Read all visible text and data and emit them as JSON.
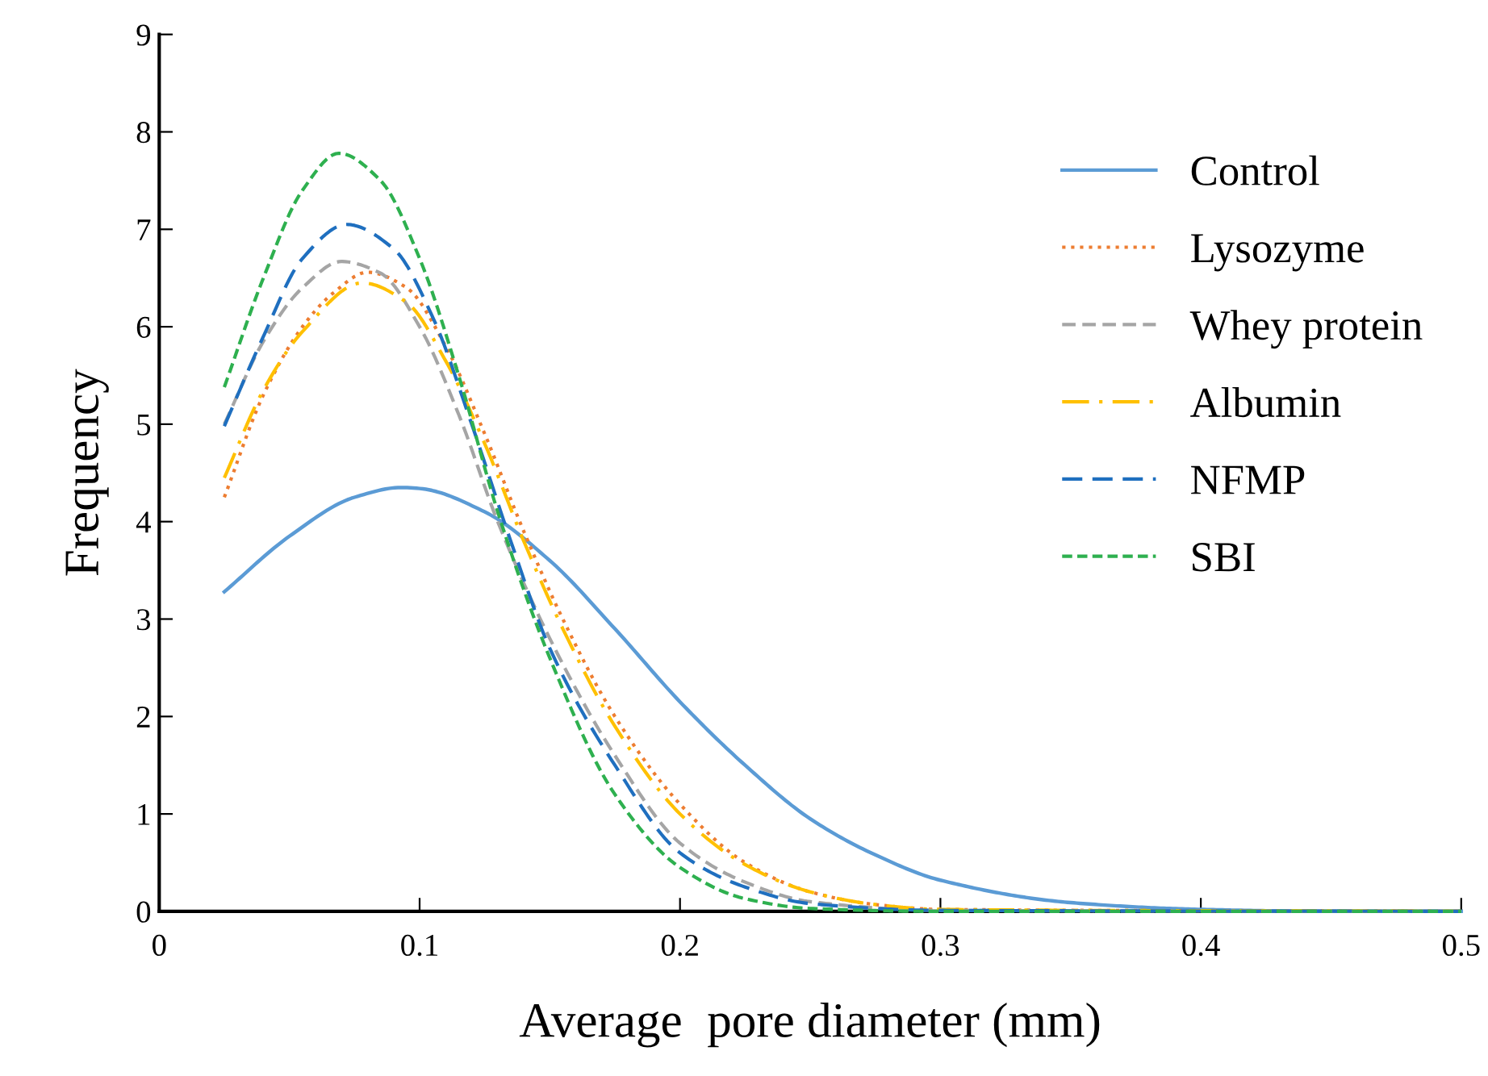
{
  "chart_data": {
    "type": "line",
    "xlabel": "Average  pore diameter (mm)",
    "ylabel": "Frequency",
    "xlim": [
      0,
      0.5
    ],
    "xticks": [
      0,
      0.1,
      0.2,
      0.3,
      0.4,
      0.5
    ],
    "ylim": [
      0,
      9
    ],
    "yticks": [
      0,
      1,
      2,
      3,
      4,
      5,
      6,
      7,
      8,
      9
    ],
    "grid": false,
    "legend": "right",
    "marker": "none",
    "series": [
      {
        "name": "Control",
        "color": "#5b9bd5",
        "line_style": "solid",
        "x": [
          0.025,
          0.05,
          0.075,
          0.093,
          0.1,
          0.125,
          0.15,
          0.175,
          0.2,
          0.225,
          0.25,
          0.275,
          0.3,
          0.35,
          0.4,
          0.45,
          0.5
        ],
        "values": [
          3.28,
          3.85,
          4.25,
          4.35,
          4.34,
          4.1,
          3.6,
          2.9,
          2.15,
          1.5,
          0.95,
          0.58,
          0.32,
          0.09,
          0.02,
          0,
          0
        ]
      },
      {
        "name": "Lysozyme",
        "color": "#ed7d31",
        "line_style": "dotted",
        "x": [
          0.025,
          0.04,
          0.055,
          0.067,
          0.08,
          0.095,
          0.11,
          0.125,
          0.14,
          0.155,
          0.175,
          0.2,
          0.225,
          0.25,
          0.275,
          0.3,
          0.5
        ],
        "values": [
          4.25,
          5.3,
          6.0,
          6.35,
          6.56,
          6.4,
          5.8,
          4.9,
          3.9,
          3.0,
          2.0,
          1.1,
          0.5,
          0.2,
          0.07,
          0.02,
          0
        ]
      },
      {
        "name": "Whey protein",
        "color": "#a5a5a5",
        "line_style": "dashed",
        "x": [
          0.025,
          0.04,
          0.055,
          0.07,
          0.085,
          0.1,
          0.115,
          0.13,
          0.15,
          0.175,
          0.2,
          0.225,
          0.25,
          0.3,
          0.5
        ],
        "values": [
          5.0,
          5.85,
          6.4,
          6.67,
          6.55,
          6.0,
          5.1,
          4.0,
          2.8,
          1.6,
          0.7,
          0.3,
          0.1,
          0.01,
          0
        ]
      },
      {
        "name": "Albumin",
        "color": "#ffc000",
        "line_style": "dashdot",
        "x": [
          0.025,
          0.04,
          0.055,
          0.078,
          0.095,
          0.11,
          0.125,
          0.14,
          0.155,
          0.175,
          0.2,
          0.225,
          0.25,
          0.275,
          0.3,
          0.5
        ],
        "values": [
          4.45,
          5.35,
          5.95,
          6.45,
          6.25,
          5.65,
          4.8,
          3.8,
          2.9,
          1.9,
          1.0,
          0.48,
          0.2,
          0.07,
          0.02,
          0
        ]
      },
      {
        "name": "NFMP",
        "color": "#1f6fbf",
        "line_style": "dashed",
        "x": [
          0.025,
          0.04,
          0.055,
          0.072,
          0.09,
          0.105,
          0.12,
          0.135,
          0.15,
          0.175,
          0.2,
          0.225,
          0.25,
          0.3,
          0.5
        ],
        "values": [
          4.98,
          5.9,
          6.7,
          7.05,
          6.8,
          6.1,
          5.0,
          3.8,
          2.7,
          1.5,
          0.6,
          0.25,
          0.08,
          0.01,
          0
        ]
      },
      {
        "name": "SBI",
        "color": "#2eb04f",
        "line_style": "dashed",
        "x": [
          0.025,
          0.04,
          0.055,
          0.069,
          0.085,
          0.1,
          0.115,
          0.13,
          0.15,
          0.175,
          0.2,
          0.225,
          0.25,
          0.3,
          0.5
        ],
        "values": [
          5.38,
          6.5,
          7.4,
          7.78,
          7.5,
          6.7,
          5.5,
          4.1,
          2.6,
          1.2,
          0.45,
          0.13,
          0.03,
          0,
          0
        ]
      }
    ]
  }
}
